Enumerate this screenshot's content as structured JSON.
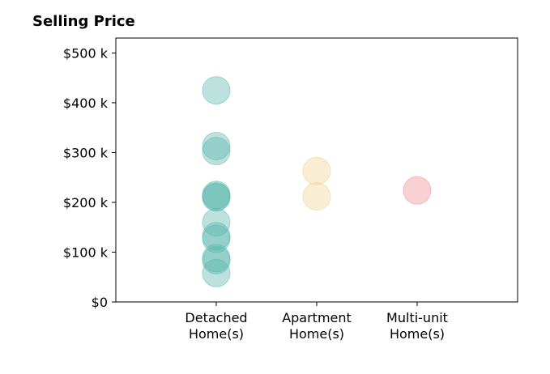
{
  "chart_data": {
    "type": "scatter",
    "title": "Selling Price",
    "xlabel": "",
    "ylabel": "",
    "categories": [
      [
        "Detached",
        "Home(s)"
      ],
      [
        "Apartment",
        "Home(s)"
      ],
      [
        "Multi-unit",
        "Home(s)"
      ]
    ],
    "ytick_values": [
      0,
      100000,
      200000,
      300000,
      400000,
      500000
    ],
    "ytick_labels": [
      "$0",
      "$100 k",
      "$200 k",
      "$300 k",
      "$400 k",
      "$500 k"
    ],
    "ylim": [
      0,
      530000
    ],
    "xlim": [
      -1,
      3
    ],
    "grid": false,
    "series": [
      {
        "category_index": 0,
        "color": "#5bb7ad",
        "values": [
          425000,
          313000,
          303000,
          215000,
          212000,
          210000,
          160000,
          132000,
          127000,
          88000,
          84000,
          58000
        ]
      },
      {
        "category_index": 1,
        "color": "#f0d290",
        "values": [
          263000,
          212000
        ]
      },
      {
        "category_index": 2,
        "color": "#ef8a92",
        "values": [
          224000
        ]
      }
    ]
  }
}
